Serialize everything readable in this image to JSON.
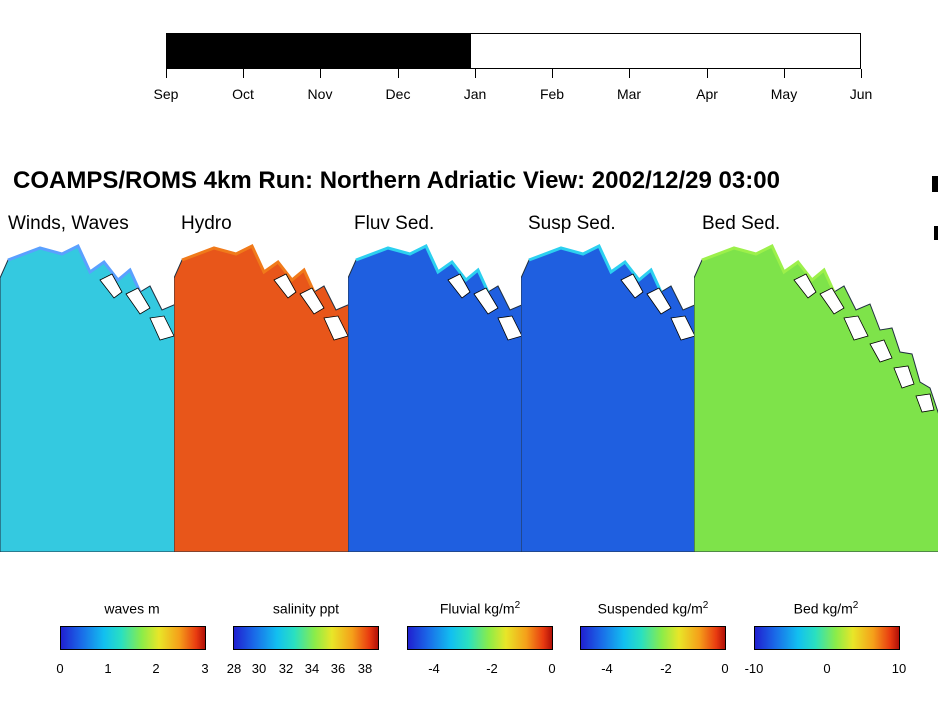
{
  "timeline": {
    "months": [
      "Sep",
      "Oct",
      "Nov",
      "Dec",
      "Jan",
      "Feb",
      "Mar",
      "Apr",
      "May",
      "Jun"
    ],
    "progress_fraction": 0.438
  },
  "title": "COAMPS/ROMS 4km Run: Northern Adriatic View: 2002/12/29 03:00",
  "panels": [
    {
      "label": "Winds, Waves",
      "color": "#34c9e0"
    },
    {
      "label": "Hydro",
      "color": "#e8561a"
    },
    {
      "label": "Fluv Sed.",
      "color": "#1f5fe0"
    },
    {
      "label": "Susp Sed.",
      "color": "#1f5fe0"
    },
    {
      "label": "Bed Sed.",
      "color": "#7ee34a"
    }
  ],
  "colorbars": [
    {
      "label": "waves m",
      "unit_sup": "",
      "ticks": [
        "0",
        "1",
        "2",
        "3"
      ]
    },
    {
      "label": "salinity ppt",
      "unit_sup": "",
      "ticks": [
        "28",
        "30",
        "32",
        "34",
        "36",
        "38"
      ]
    },
    {
      "label": "Fluvial kg/m",
      "unit_sup": "2",
      "ticks": [
        "-4",
        "-2",
        "0"
      ]
    },
    {
      "label": "Suspended kg/m",
      "unit_sup": "2",
      "ticks": [
        "-4",
        "-2",
        "0"
      ]
    },
    {
      "label": "Bed kg/m",
      "unit_sup": "2",
      "ticks": [
        "-10",
        "0",
        "10"
      ]
    }
  ]
}
